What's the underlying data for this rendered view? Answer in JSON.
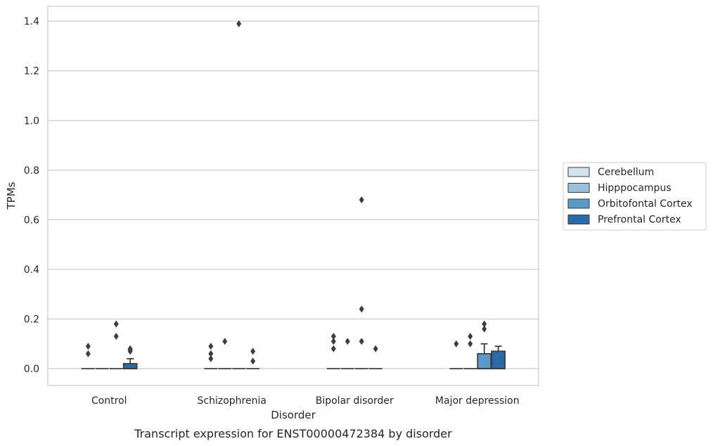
{
  "caption": "Transcript expression for ENST00000472384 by disorder",
  "chart_data": {
    "type": "box",
    "xlabel": "Disorder",
    "ylabel": "TPMs",
    "ylim": [
      -0.068,
      1.46
    ],
    "yticks": [
      "0.0",
      "0.2",
      "0.4",
      "0.6",
      "0.8",
      "1.0",
      "1.2",
      "1.4"
    ],
    "grid": "horizontal",
    "legend_position": "right",
    "categories": [
      "Control",
      "Schizophrenia",
      "Bipolar disorder",
      "Major depression"
    ],
    "series": [
      {
        "name": "Cerebellum",
        "color": "#d4e2f0",
        "boxes": [
          {
            "q1": 0,
            "median": 0,
            "q3": 0,
            "whisker_low": 0,
            "whisker_high": 0,
            "outliers": [
              0.06,
              0.09
            ]
          },
          {
            "q1": 0,
            "median": 0,
            "q3": 0,
            "whisker_low": 0,
            "whisker_high": 0,
            "outliers": [
              0.04,
              0.06,
              0.09
            ]
          },
          {
            "q1": 0,
            "median": 0,
            "q3": 0,
            "whisker_low": 0,
            "whisker_high": 0,
            "outliers": [
              0.08,
              0.11,
              0.13
            ]
          },
          {
            "q1": 0,
            "median": 0,
            "q3": 0,
            "whisker_low": 0,
            "whisker_high": 0,
            "outliers": [
              0.1
            ]
          }
        ]
      },
      {
        "name": "Hipppocampus",
        "color": "#9ac1dc",
        "boxes": [
          {
            "q1": 0,
            "median": 0,
            "q3": 0,
            "whisker_low": 0,
            "whisker_high": 0,
            "outliers": []
          },
          {
            "q1": 0,
            "median": 0,
            "q3": 0,
            "whisker_low": 0,
            "whisker_high": 0,
            "outliers": [
              0.11
            ]
          },
          {
            "q1": 0,
            "median": 0,
            "q3": 0,
            "whisker_low": 0,
            "whisker_high": 0,
            "outliers": [
              0.11
            ]
          },
          {
            "q1": 0,
            "median": 0,
            "q3": 0,
            "whisker_low": 0,
            "whisker_high": 0,
            "outliers": [
              0.1,
              0.13
            ]
          }
        ]
      },
      {
        "name": "Orbitofontal Cortex",
        "color": "#5b9ac8",
        "boxes": [
          {
            "q1": 0,
            "median": 0,
            "q3": 0,
            "whisker_low": 0,
            "whisker_high": 0,
            "outliers": [
              0.13,
              0.18
            ]
          },
          {
            "q1": 0,
            "median": 0,
            "q3": 0,
            "whisker_low": 0,
            "whisker_high": 0,
            "outliers": [
              1.39
            ]
          },
          {
            "q1": 0,
            "median": 0,
            "q3": 0,
            "whisker_low": 0,
            "whisker_high": 0,
            "outliers": [
              0.11,
              0.24,
              0.68
            ]
          },
          {
            "q1": 0,
            "median": 0,
            "q3": 0.06,
            "whisker_low": 0,
            "whisker_high": 0.1,
            "outliers": [
              0.16,
              0.18
            ]
          }
        ]
      },
      {
        "name": "Prefrontal Cortex",
        "color": "#2a6aac",
        "boxes": [
          {
            "q1": 0,
            "median": 0,
            "q3": 0.02,
            "whisker_low": 0,
            "whisker_high": 0.04,
            "outliers": [
              0.07,
              0.075,
              0.08
            ]
          },
          {
            "q1": 0,
            "median": 0,
            "q3": 0,
            "whisker_low": 0,
            "whisker_high": 0,
            "outliers": [
              0.03,
              0.07
            ]
          },
          {
            "q1": 0,
            "median": 0,
            "q3": 0,
            "whisker_low": 0,
            "whisker_high": 0,
            "outliers": [
              0.08
            ]
          },
          {
            "q1": 0,
            "median": 0,
            "q3": 0.07,
            "whisker_low": 0,
            "whisker_high": 0.09,
            "outliers": []
          }
        ]
      }
    ]
  }
}
